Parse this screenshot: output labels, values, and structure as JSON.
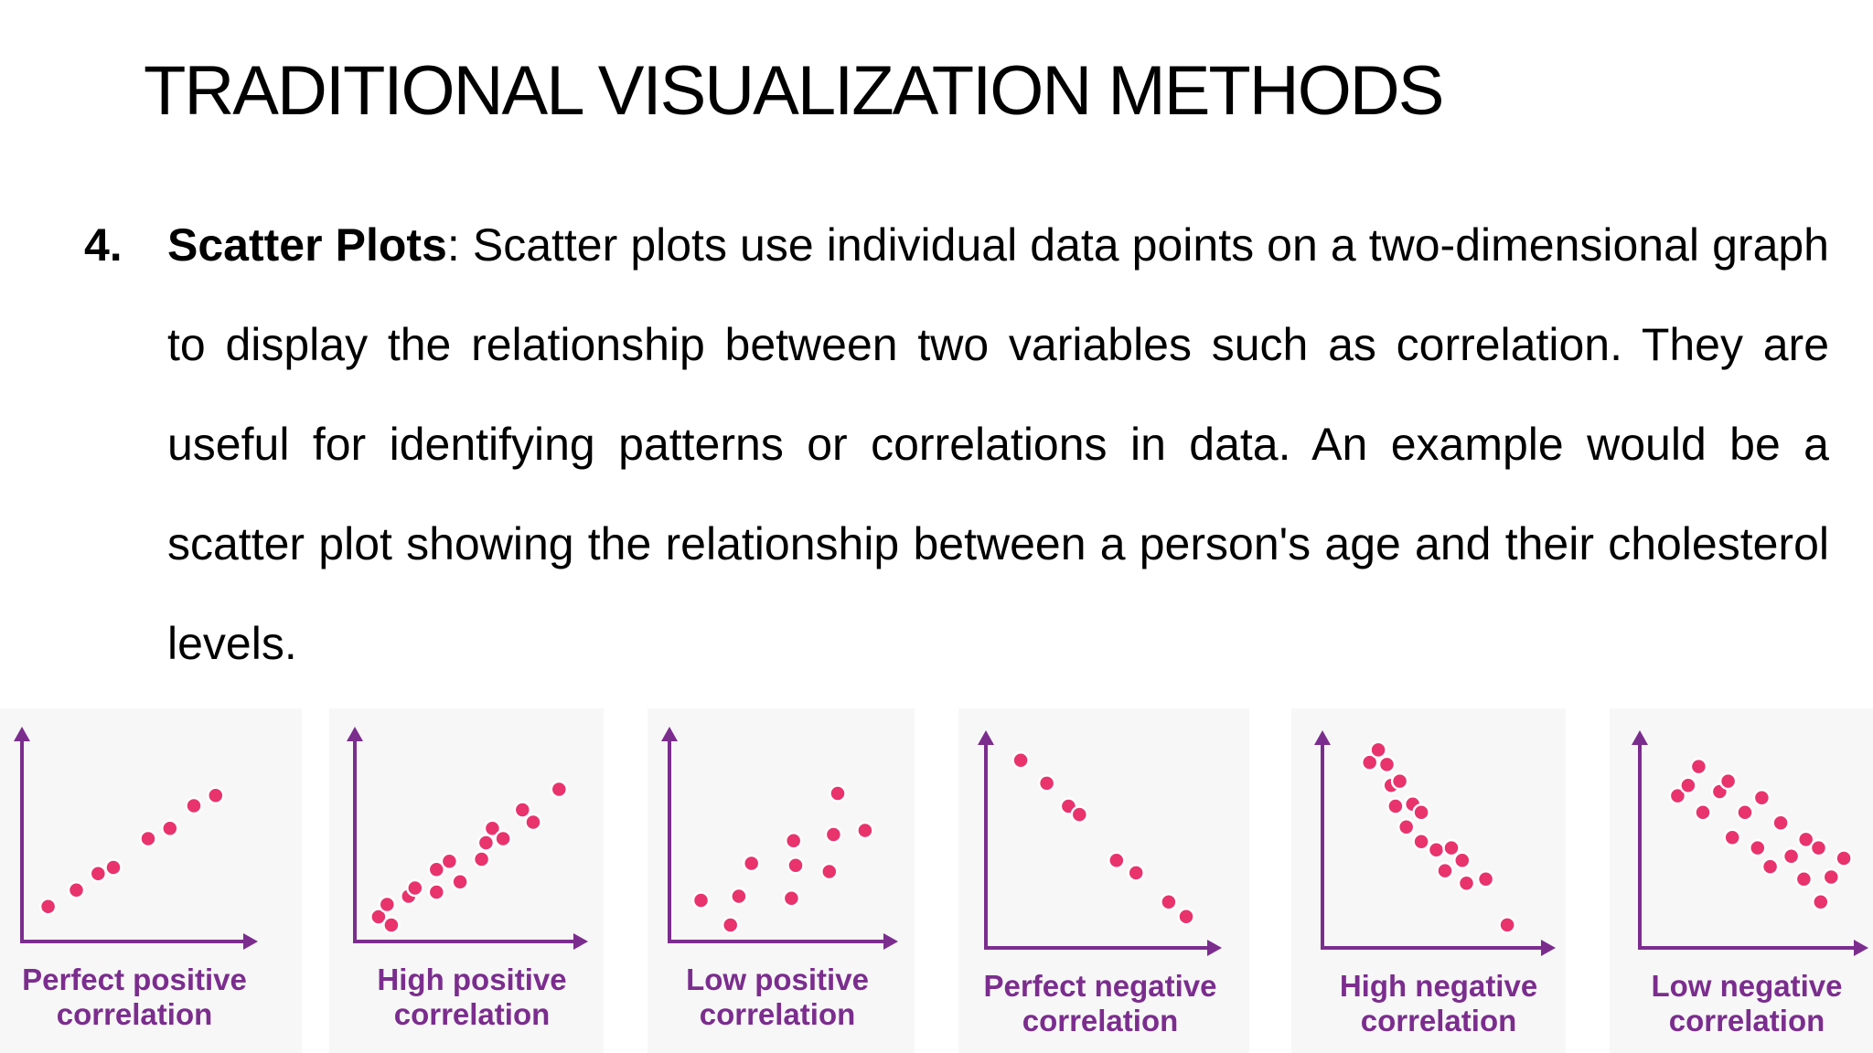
{
  "slide": {
    "title": "TRADITIONAL VISUALIZATION METHODS"
  },
  "point": {
    "number": "4.",
    "term": "Scatter Plots",
    "separator": ":",
    "text": " Scatter plots use individual data points on a two-dimensional graph to display the relationship between two variables such as correlation. They are useful for identifying patterns or correlations in data. An example would be a scatter plot showing the relationship between a person's age and their cholesterol levels."
  },
  "colors": {
    "axis": "#7b2d8e",
    "label": "#7b2d8e",
    "point_fill": "#e8336d",
    "point_stroke": "#ffffff",
    "panel_bg": "#f7f7f7"
  },
  "chart_data": [
    {
      "type": "scatter",
      "title": "Perfect positive correlation",
      "label_lines": [
        "Perfect positive",
        "correlation"
      ],
      "xlim": [
        0,
        10
      ],
      "ylim": [
        0,
        10
      ],
      "points": [
        [
          1.2,
          1.7
        ],
        [
          2.5,
          2.5
        ],
        [
          3.5,
          3.3
        ],
        [
          4.2,
          3.6
        ],
        [
          5.8,
          5.0
        ],
        [
          6.8,
          5.5
        ],
        [
          7.9,
          6.6
        ],
        [
          8.9,
          7.1
        ]
      ]
    },
    {
      "type": "scatter",
      "title": "High positive correlation",
      "label_lines": [
        "High positive",
        "correlation"
      ],
      "xlim": [
        0,
        10
      ],
      "ylim": [
        0,
        10
      ],
      "points": [
        [
          1.1,
          1.2
        ],
        [
          1.5,
          1.8
        ],
        [
          1.7,
          0.8
        ],
        [
          2.5,
          2.2
        ],
        [
          2.8,
          2.6
        ],
        [
          3.8,
          2.4
        ],
        [
          3.8,
          3.5
        ],
        [
          4.4,
          3.9
        ],
        [
          4.9,
          2.9
        ],
        [
          5.9,
          4.0
        ],
        [
          6.1,
          4.8
        ],
        [
          6.4,
          5.5
        ],
        [
          6.9,
          5.0
        ],
        [
          7.8,
          6.4
        ],
        [
          8.3,
          5.8
        ],
        [
          9.5,
          7.4
        ]
      ]
    },
    {
      "type": "scatter",
      "title": "Low positive correlation",
      "label_lines": [
        "Low positive",
        "correlation"
      ],
      "xlim": [
        0,
        10
      ],
      "ylim": [
        0,
        10
      ],
      "points": [
        [
          1.5,
          2.0
        ],
        [
          2.9,
          0.8
        ],
        [
          3.3,
          2.2
        ],
        [
          3.9,
          3.8
        ],
        [
          5.8,
          2.1
        ],
        [
          5.9,
          4.9
        ],
        [
          6.0,
          3.7
        ],
        [
          7.6,
          3.4
        ],
        [
          7.8,
          5.2
        ],
        [
          8.0,
          7.2
        ],
        [
          9.3,
          5.4
        ]
      ]
    },
    {
      "type": "scatter",
      "title": "Perfect negative correlation",
      "label_lines": [
        "Perfect negative",
        "correlation"
      ],
      "xlim": [
        0,
        10
      ],
      "ylim": [
        0,
        10
      ],
      "points": [
        [
          1.6,
          9.0
        ],
        [
          2.8,
          7.9
        ],
        [
          3.8,
          6.8
        ],
        [
          4.3,
          6.4
        ],
        [
          6.0,
          4.2
        ],
        [
          6.9,
          3.6
        ],
        [
          8.4,
          2.2
        ],
        [
          9.2,
          1.5
        ]
      ]
    },
    {
      "type": "scatter",
      "title": "High negative correlation",
      "label_lines": [
        "High negative",
        "correlation"
      ],
      "xlim": [
        0,
        10
      ],
      "ylim": [
        0,
        10
      ],
      "points": [
        [
          2.2,
          8.9
        ],
        [
          2.6,
          9.5
        ],
        [
          3.0,
          8.8
        ],
        [
          3.2,
          7.8
        ],
        [
          3.4,
          6.8
        ],
        [
          3.6,
          8.0
        ],
        [
          3.9,
          5.8
        ],
        [
          4.2,
          6.9
        ],
        [
          4.6,
          6.5
        ],
        [
          4.6,
          5.1
        ],
        [
          5.3,
          4.7
        ],
        [
          5.7,
          3.7
        ],
        [
          6.0,
          4.8
        ],
        [
          6.5,
          4.2
        ],
        [
          6.7,
          3.1
        ],
        [
          7.6,
          3.3
        ],
        [
          8.6,
          1.1
        ]
      ]
    },
    {
      "type": "scatter",
      "title": "Low negative correlation",
      "label_lines": [
        "Low negative",
        "correlation"
      ],
      "xlim": [
        0,
        10
      ],
      "ylim": [
        0,
        10
      ],
      "points": [
        [
          1.8,
          7.3
        ],
        [
          2.3,
          7.8
        ],
        [
          2.8,
          8.7
        ],
        [
          3.0,
          6.5
        ],
        [
          3.8,
          7.5
        ],
        [
          4.2,
          8.0
        ],
        [
          4.4,
          5.3
        ],
        [
          5.0,
          6.5
        ],
        [
          5.6,
          4.8
        ],
        [
          5.8,
          7.2
        ],
        [
          6.2,
          3.9
        ],
        [
          6.7,
          6.0
        ],
        [
          7.2,
          4.4
        ],
        [
          7.8,
          3.3
        ],
        [
          7.9,
          5.2
        ],
        [
          8.5,
          4.8
        ],
        [
          8.6,
          2.2
        ],
        [
          9.1,
          3.4
        ],
        [
          9.7,
          4.3
        ]
      ]
    }
  ]
}
